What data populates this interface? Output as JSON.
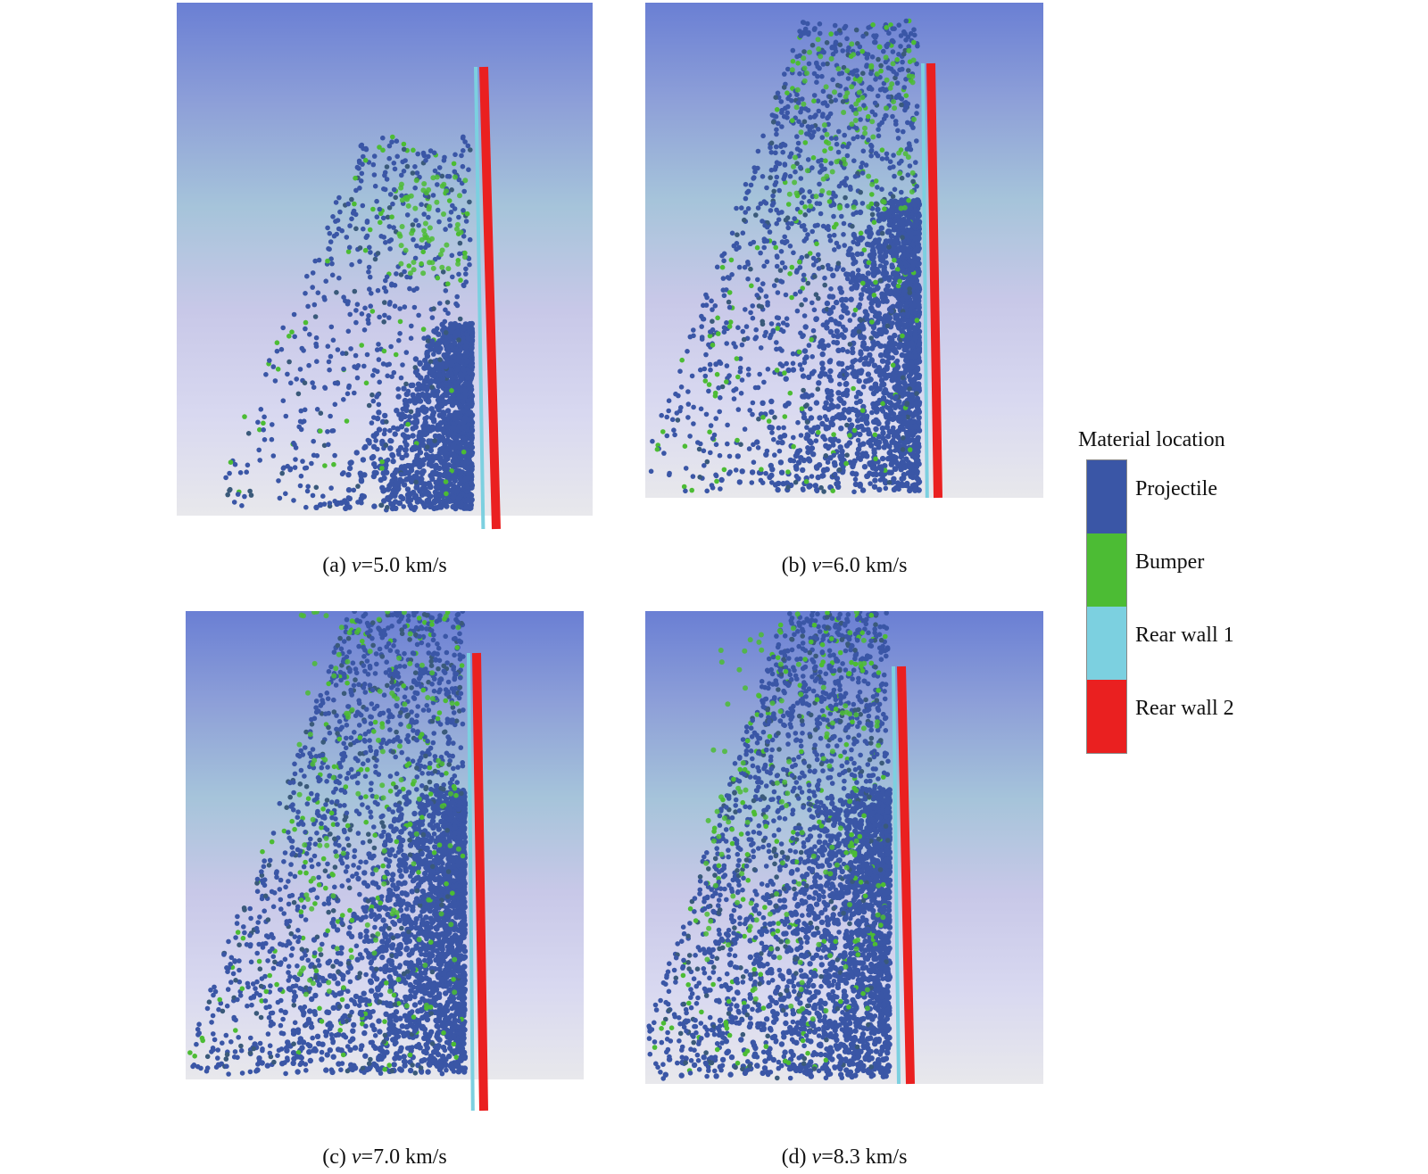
{
  "colors": {
    "projectile": "#3a56a6",
    "bumper": "#4cbc34",
    "rear_wall_1": "#7cd0e0",
    "rear_wall_2": "#ea2020",
    "background_gradient": [
      "#6a7fd4",
      "#8ea0d8",
      "#a6c4da",
      "#c8c8e8",
      "#d8d8f0",
      "#e8e8ec"
    ]
  },
  "panels": [
    {
      "label_prefix": "(a) ",
      "velocity_symbol": "v",
      "velocity_text": "=5.0 km/s"
    },
    {
      "label_prefix": "(b) ",
      "velocity_symbol": "v",
      "velocity_text": "=6.0 km/s"
    },
    {
      "label_prefix": "(c) ",
      "velocity_symbol": "v",
      "velocity_text": "=7.0 km/s"
    },
    {
      "label_prefix": "(d) ",
      "velocity_symbol": "v",
      "velocity_text": "=8.3 km/s"
    }
  ],
  "legend": {
    "title": "Material location",
    "items": [
      {
        "label": "Projectile",
        "color": "#3a56a6"
      },
      {
        "label": "Bumper",
        "color": "#4cbc34"
      },
      {
        "label": "Rear wall 1",
        "color": "#7cd0e0"
      },
      {
        "label": "Rear wall 2",
        "color": "#ea2020"
      }
    ]
  }
}
